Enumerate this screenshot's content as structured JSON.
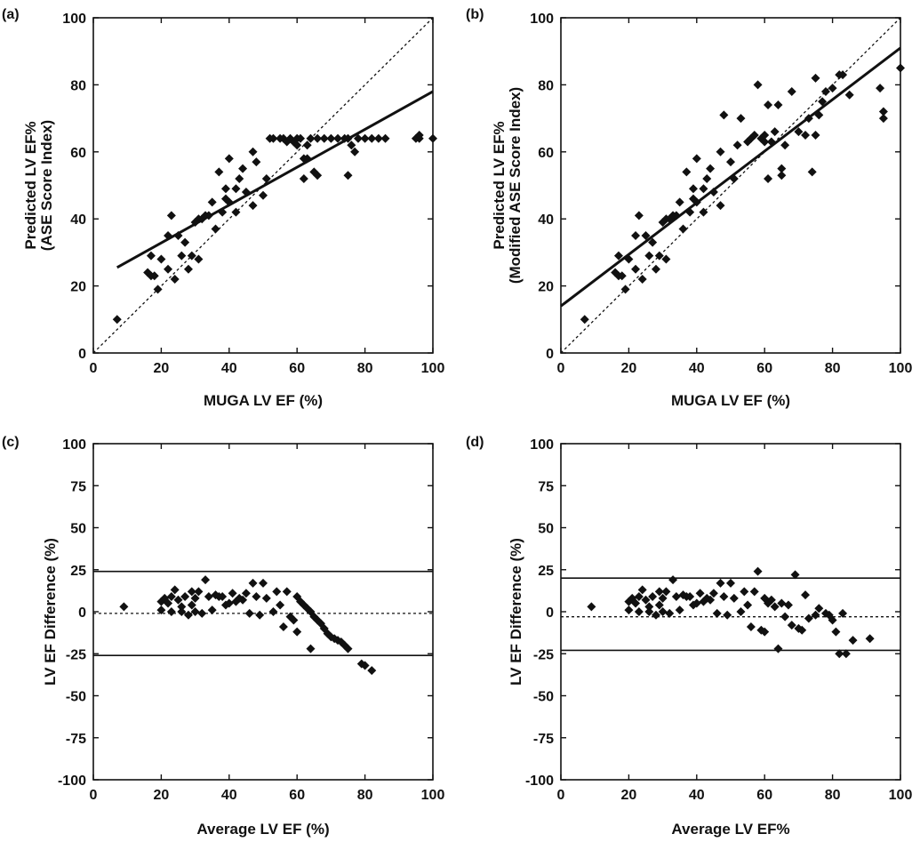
{
  "chart_data": [
    {
      "id": "a",
      "type": "scatter",
      "panel_label": "(a)",
      "xlabel": "MUGA LV EF (%)",
      "ylabel_lines": [
        "Predicted LV EF%",
        "(ASE Score Index)"
      ],
      "xlim": [
        0,
        100
      ],
      "ylim": [
        0,
        100
      ],
      "xticks": [
        0,
        20,
        40,
        60,
        80,
        100
      ],
      "yticks": [
        0,
        20,
        40,
        60,
        80,
        100
      ],
      "marker": "diamond",
      "points": [
        [
          7,
          10
        ],
        [
          16,
          24
        ],
        [
          17,
          23
        ],
        [
          17,
          29
        ],
        [
          18,
          23
        ],
        [
          19,
          19
        ],
        [
          20,
          28
        ],
        [
          22,
          35
        ],
        [
          22,
          25
        ],
        [
          23,
          41
        ],
        [
          24,
          22
        ],
        [
          25,
          35
        ],
        [
          26,
          29
        ],
        [
          27,
          33
        ],
        [
          28,
          25
        ],
        [
          29,
          29
        ],
        [
          30,
          39
        ],
        [
          31,
          28
        ],
        [
          31,
          40
        ],
        [
          32,
          40
        ],
        [
          33,
          41
        ],
        [
          34,
          41
        ],
        [
          35,
          45
        ],
        [
          36,
          37
        ],
        [
          37,
          54
        ],
        [
          38,
          42
        ],
        [
          39,
          46
        ],
        [
          39,
          49
        ],
        [
          40,
          58
        ],
        [
          40,
          45
        ],
        [
          42,
          49
        ],
        [
          42,
          42
        ],
        [
          43,
          52
        ],
        [
          44,
          55
        ],
        [
          45,
          48
        ],
        [
          47,
          60
        ],
        [
          47,
          44
        ],
        [
          48,
          57
        ],
        [
          50,
          47
        ],
        [
          51,
          52
        ],
        [
          52,
          64
        ],
        [
          53,
          64
        ],
        [
          55,
          64
        ],
        [
          56,
          64
        ],
        [
          57,
          63
        ],
        [
          58,
          64
        ],
        [
          59,
          63
        ],
        [
          60,
          62
        ],
        [
          60,
          64
        ],
        [
          61,
          64
        ],
        [
          62,
          58
        ],
        [
          62,
          52
        ],
        [
          63,
          58
        ],
        [
          63,
          62
        ],
        [
          64,
          64
        ],
        [
          65,
          54
        ],
        [
          66,
          53
        ],
        [
          66,
          64
        ],
        [
          68,
          64
        ],
        [
          70,
          64
        ],
        [
          72,
          64
        ],
        [
          74,
          64
        ],
        [
          75,
          53
        ],
        [
          75,
          64
        ],
        [
          76,
          62
        ],
        [
          77,
          60
        ],
        [
          78,
          64
        ],
        [
          80,
          64
        ],
        [
          82,
          64
        ],
        [
          84,
          64
        ],
        [
          86,
          64
        ],
        [
          95,
          64
        ],
        [
          96,
          64
        ],
        [
          96,
          65
        ],
        [
          100,
          64
        ]
      ],
      "reference_lines": [
        {
          "name": "",
          "style": "solid",
          "x": [
            7,
            100
          ],
          "y": [
            25.5,
            78
          ]
        },
        {
          "name": "",
          "style": "dotted",
          "x": [
            0,
            100
          ],
          "y": [
            0,
            100
          ]
        }
      ]
    },
    {
      "id": "b",
      "type": "scatter",
      "panel_label": "(b)",
      "xlabel": "MUGA LV EF (%)",
      "ylabel_lines": [
        "Predicted LV EF%",
        "(Modified ASE Score Index)"
      ],
      "xlim": [
        0,
        100
      ],
      "ylim": [
        0,
        100
      ],
      "xticks": [
        0,
        20,
        40,
        60,
        80,
        100
      ],
      "yticks": [
        0,
        20,
        40,
        60,
        80,
        100
      ],
      "marker": "diamond",
      "points": [
        [
          7,
          10
        ],
        [
          16,
          24
        ],
        [
          17,
          23
        ],
        [
          17,
          29
        ],
        [
          18,
          23
        ],
        [
          19,
          19
        ],
        [
          20,
          28
        ],
        [
          22,
          35
        ],
        [
          22,
          25
        ],
        [
          23,
          41
        ],
        [
          24,
          22
        ],
        [
          25,
          35
        ],
        [
          26,
          29
        ],
        [
          27,
          33
        ],
        [
          28,
          25
        ],
        [
          29,
          29
        ],
        [
          30,
          39
        ],
        [
          31,
          28
        ],
        [
          31,
          40
        ],
        [
          32,
          40
        ],
        [
          33,
          41
        ],
        [
          34,
          41
        ],
        [
          35,
          45
        ],
        [
          36,
          37
        ],
        [
          37,
          54
        ],
        [
          38,
          42
        ],
        [
          39,
          46
        ],
        [
          39,
          49
        ],
        [
          40,
          58
        ],
        [
          40,
          45
        ],
        [
          42,
          49
        ],
        [
          42,
          42
        ],
        [
          43,
          52
        ],
        [
          44,
          55
        ],
        [
          45,
          48
        ],
        [
          47,
          60
        ],
        [
          47,
          44
        ],
        [
          48,
          71
        ],
        [
          50,
          57
        ],
        [
          51,
          52
        ],
        [
          52,
          62
        ],
        [
          53,
          70
        ],
        [
          55,
          63
        ],
        [
          56,
          64
        ],
        [
          57,
          65
        ],
        [
          58,
          80
        ],
        [
          59,
          64
        ],
        [
          60,
          63
        ],
        [
          60,
          65
        ],
        [
          61,
          74
        ],
        [
          61,
          52
        ],
        [
          62,
          63
        ],
        [
          63,
          66
        ],
        [
          64,
          74
        ],
        [
          65,
          55
        ],
        [
          65,
          53
        ],
        [
          66,
          62
        ],
        [
          68,
          78
        ],
        [
          70,
          66
        ],
        [
          72,
          65
        ],
        [
          73,
          70
        ],
        [
          74,
          54
        ],
        [
          75,
          82
        ],
        [
          75,
          65
        ],
        [
          76,
          71
        ],
        [
          77,
          75
        ],
        [
          78,
          78
        ],
        [
          80,
          79
        ],
        [
          82,
          83
        ],
        [
          83,
          83
        ],
        [
          85,
          77
        ],
        [
          94,
          79
        ],
        [
          95,
          70
        ],
        [
          95,
          72
        ],
        [
          100,
          85
        ]
      ],
      "reference_lines": [
        {
          "name": "",
          "style": "solid",
          "x": [
            0,
            100
          ],
          "y": [
            14,
            91
          ]
        },
        {
          "name": "",
          "style": "dotted",
          "x": [
            0,
            100
          ],
          "y": [
            0,
            100
          ]
        }
      ]
    },
    {
      "id": "c",
      "type": "scatter",
      "panel_label": "(c)",
      "xlabel": "Average LV EF (%)",
      "ylabel_lines": [
        "LV EF Difference (%)"
      ],
      "xlim": [
        0,
        100
      ],
      "ylim": [
        -100,
        100
      ],
      "xticks": [
        0,
        20,
        40,
        60,
        80,
        100
      ],
      "yticks": [
        -100,
        -75,
        -50,
        -25,
        0,
        25,
        50,
        75,
        100
      ],
      "marker": "diamond",
      "points": [
        [
          9,
          3
        ],
        [
          20,
          1
        ],
        [
          20,
          6
        ],
        [
          21,
          8
        ],
        [
          22,
          5
        ],
        [
          23,
          9
        ],
        [
          23,
          0
        ],
        [
          24,
          13
        ],
        [
          25,
          7
        ],
        [
          26,
          3
        ],
        [
          26,
          0
        ],
        [
          27,
          9
        ],
        [
          28,
          -2
        ],
        [
          29,
          12
        ],
        [
          29,
          4
        ],
        [
          30,
          8
        ],
        [
          30,
          0
        ],
        [
          31,
          12
        ],
        [
          32,
          -1
        ],
        [
          33,
          19
        ],
        [
          34,
          9
        ],
        [
          35,
          1
        ],
        [
          36,
          10
        ],
        [
          37,
          9
        ],
        [
          38,
          9
        ],
        [
          39,
          4
        ],
        [
          40,
          5
        ],
        [
          41,
          11
        ],
        [
          42,
          6
        ],
        [
          43,
          8
        ],
        [
          44,
          7
        ],
        [
          45,
          11
        ],
        [
          46,
          -1
        ],
        [
          47,
          17
        ],
        [
          48,
          9
        ],
        [
          49,
          -2
        ],
        [
          50,
          17
        ],
        [
          51,
          8
        ],
        [
          53,
          0
        ],
        [
          54,
          12
        ],
        [
          55,
          4
        ],
        [
          56,
          -9
        ],
        [
          57,
          12
        ],
        [
          58,
          -3
        ],
        [
          59,
          -5
        ],
        [
          60,
          -12
        ],
        [
          60,
          9
        ],
        [
          61,
          6
        ],
        [
          62,
          4
        ],
        [
          63,
          2
        ],
        [
          64,
          0
        ],
        [
          64,
          -22
        ],
        [
          65,
          -3
        ],
        [
          66,
          -5
        ],
        [
          67,
          -7
        ],
        [
          68,
          -10
        ],
        [
          69,
          -13
        ],
        [
          70,
          -15
        ],
        [
          71,
          -16
        ],
        [
          72,
          -17
        ],
        [
          73,
          -18
        ],
        [
          74,
          -20
        ],
        [
          75,
          -22
        ],
        [
          79,
          -31
        ],
        [
          80,
          -32
        ],
        [
          82,
          -35
        ]
      ],
      "reference_lines": [
        {
          "name": "",
          "style": "solid",
          "x": [
            0,
            100
          ],
          "y": [
            24,
            24
          ]
        },
        {
          "name": "",
          "style": "dotted",
          "x": [
            0,
            100
          ],
          "y": [
            -1,
            -1
          ]
        },
        {
          "name": "",
          "style": "solid",
          "x": [
            0,
            100
          ],
          "y": [
            -26,
            -26
          ]
        }
      ]
    },
    {
      "id": "d",
      "type": "scatter",
      "panel_label": "(d)",
      "xlabel": "Average LV EF%",
      "ylabel_lines": [
        "LV EF Difference (%)"
      ],
      "xlim": [
        0,
        100
      ],
      "ylim": [
        -100,
        100
      ],
      "xticks": [
        0,
        20,
        40,
        60,
        80,
        100
      ],
      "yticks": [
        -100,
        -75,
        -50,
        -25,
        0,
        25,
        50,
        75,
        100
      ],
      "marker": "diamond",
      "points": [
        [
          9,
          3
        ],
        [
          20,
          1
        ],
        [
          20,
          6
        ],
        [
          21,
          8
        ],
        [
          22,
          5
        ],
        [
          23,
          9
        ],
        [
          23,
          0
        ],
        [
          24,
          13
        ],
        [
          25,
          7
        ],
        [
          26,
          3
        ],
        [
          26,
          0
        ],
        [
          27,
          9
        ],
        [
          28,
          -2
        ],
        [
          29,
          12
        ],
        [
          29,
          4
        ],
        [
          30,
          8
        ],
        [
          30,
          0
        ],
        [
          31,
          12
        ],
        [
          32,
          -1
        ],
        [
          33,
          19
        ],
        [
          34,
          9
        ],
        [
          35,
          1
        ],
        [
          36,
          10
        ],
        [
          37,
          9
        ],
        [
          38,
          9
        ],
        [
          39,
          4
        ],
        [
          40,
          5
        ],
        [
          41,
          11
        ],
        [
          42,
          6
        ],
        [
          43,
          8
        ],
        [
          44,
          7
        ],
        [
          45,
          11
        ],
        [
          46,
          -1
        ],
        [
          47,
          17
        ],
        [
          48,
          9
        ],
        [
          49,
          -2
        ],
        [
          50,
          17
        ],
        [
          51,
          8
        ],
        [
          53,
          0
        ],
        [
          54,
          12
        ],
        [
          55,
          4
        ],
        [
          56,
          -9
        ],
        [
          57,
          12
        ],
        [
          58,
          24
        ],
        [
          59,
          -11
        ],
        [
          60,
          8
        ],
        [
          60,
          -12
        ],
        [
          61,
          5
        ],
        [
          62,
          7
        ],
        [
          63,
          3
        ],
        [
          64,
          -22
        ],
        [
          65,
          5
        ],
        [
          66,
          -3
        ],
        [
          67,
          4
        ],
        [
          68,
          -8
        ],
        [
          69,
          22
        ],
        [
          70,
          -10
        ],
        [
          71,
          -11
        ],
        [
          72,
          10
        ],
        [
          73,
          -4
        ],
        [
          75,
          -2
        ],
        [
          76,
          2
        ],
        [
          78,
          -1
        ],
        [
          79,
          -2
        ],
        [
          80,
          -5
        ],
        [
          81,
          -12
        ],
        [
          82,
          -25
        ],
        [
          83,
          -1
        ],
        [
          84,
          -25
        ],
        [
          86,
          -17
        ],
        [
          91,
          -16
        ]
      ],
      "reference_lines": [
        {
          "name": "",
          "style": "solid",
          "x": [
            0,
            100
          ],
          "y": [
            20,
            20
          ]
        },
        {
          "name": "",
          "style": "dotted",
          "x": [
            0,
            100
          ],
          "y": [
            -3,
            -3
          ]
        },
        {
          "name": "",
          "style": "solid",
          "x": [
            0,
            100
          ],
          "y": [
            -23,
            -23
          ]
        }
      ]
    }
  ]
}
